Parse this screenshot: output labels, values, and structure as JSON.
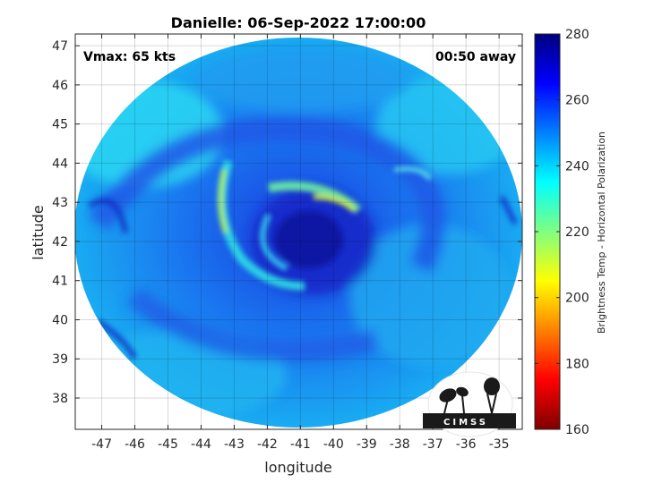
{
  "chart_data": {
    "type": "heatmap",
    "title": "Danielle: 06-Sep-2022 17:00:00",
    "xlabel": "longitude",
    "ylabel": "latitude",
    "xlim": [
      -47.8,
      -34.3
    ],
    "ylim": [
      37.2,
      47.3
    ],
    "x_ticks": [
      -47,
      -46,
      -45,
      -44,
      -43,
      -42,
      -41,
      -40,
      -39,
      -38,
      -37,
      -36,
      -35
    ],
    "y_ticks": [
      38,
      39,
      40,
      41,
      42,
      43,
      44,
      45,
      46,
      47
    ],
    "grid": true,
    "storm_center": {
      "lon": -40.8,
      "lat": 42.1
    },
    "annotations": {
      "vmax": "Vmax: 65 kts",
      "time_offset": "00:50 away"
    },
    "colorbar": {
      "label": "Brightness Temp - Horizontal Polarization",
      "range": [
        160,
        280
      ],
      "ticks": [
        160,
        180,
        200,
        220,
        240,
        260,
        280
      ],
      "colormap": "jet",
      "colors": [
        "#7f0000",
        "#ff0000",
        "#ff8000",
        "#ffff00",
        "#80ff80",
        "#00ffff",
        "#0080ff",
        "#0000ff",
        "#00007f"
      ]
    }
  },
  "logo": {
    "text": "CIMSS"
  }
}
